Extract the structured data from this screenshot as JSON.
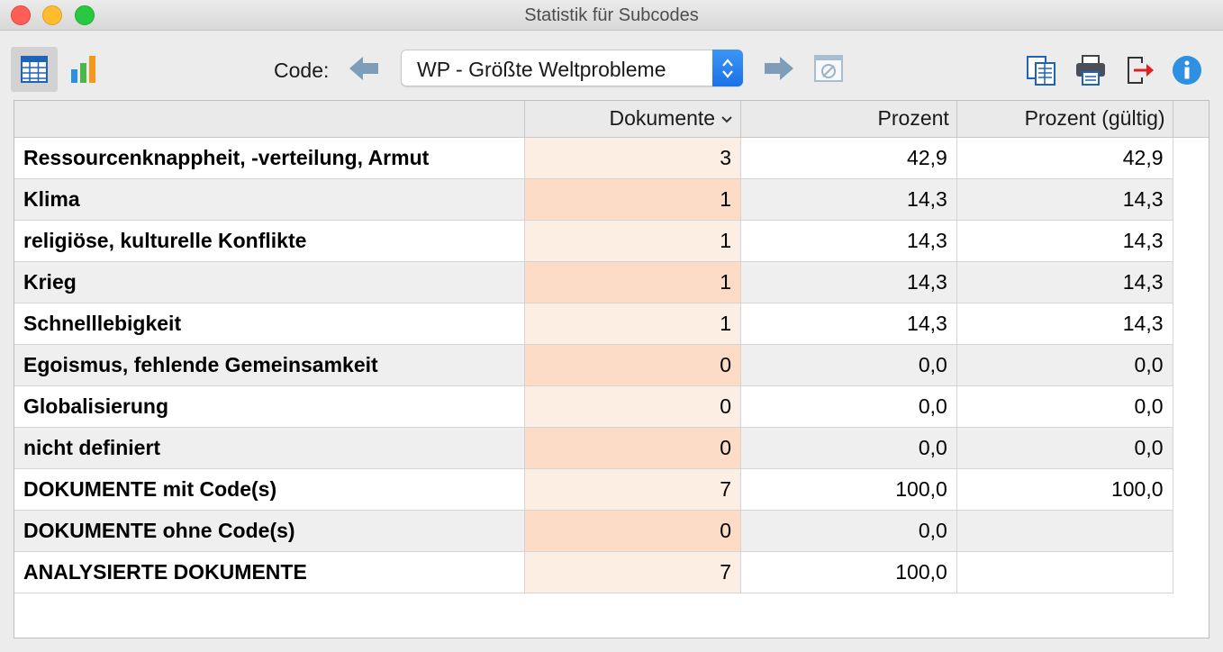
{
  "window": {
    "title": "Statistik für Subcodes"
  },
  "toolbar": {
    "view_table_icon": "table-grid-icon",
    "view_chart_icon": "bar-chart-icon",
    "code_label": "Code:",
    "selected_code": "WP - Größte Weltprobleme",
    "icons": [
      "arrow-left-icon",
      "arrow-right-icon",
      "clear-filter-icon",
      "copy-icon",
      "print-icon",
      "export-icon",
      "info-icon"
    ]
  },
  "table": {
    "headers": [
      "",
      "Dokumente",
      "Prozent",
      "Prozent (gültig)"
    ],
    "rows": [
      {
        "name": "Ressourcenknappheit, -verteilung, Armut",
        "docs": "3",
        "pct": "42,9",
        "valid": "42,9"
      },
      {
        "name": "Klima",
        "docs": "1",
        "pct": "14,3",
        "valid": "14,3"
      },
      {
        "name": "religiöse, kulturelle Konflikte",
        "docs": "1",
        "pct": "14,3",
        "valid": "14,3"
      },
      {
        "name": "Krieg",
        "docs": "1",
        "pct": "14,3",
        "valid": "14,3"
      },
      {
        "name": "Schnelllebigkeit",
        "docs": "1",
        "pct": "14,3",
        "valid": "14,3"
      },
      {
        "name": "Egoismus, fehlende Gemeinsamkeit",
        "docs": "0",
        "pct": "0,0",
        "valid": "0,0"
      },
      {
        "name": "Globalisierung",
        "docs": "0",
        "pct": "0,0",
        "valid": "0,0"
      },
      {
        "name": "nicht definiert",
        "docs": "0",
        "pct": "0,0",
        "valid": "0,0"
      },
      {
        "name": "DOKUMENTE mit Code(s)",
        "docs": "7",
        "pct": "100,0",
        "valid": "100,0"
      },
      {
        "name": "DOKUMENTE ohne Code(s)",
        "docs": "0",
        "pct": "0,0",
        "valid": ""
      },
      {
        "name": "ANALYSIERTE DOKUMENTE",
        "docs": "7",
        "pct": "100,0",
        "valid": ""
      }
    ]
  }
}
